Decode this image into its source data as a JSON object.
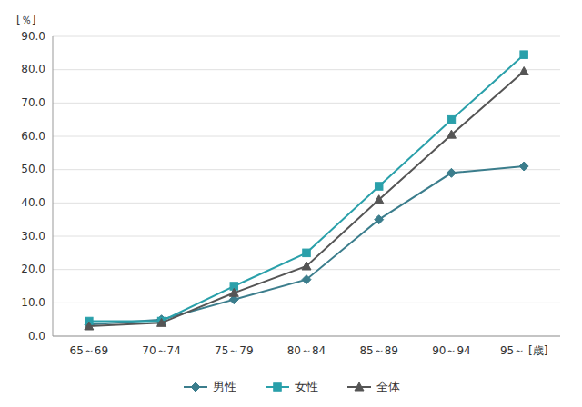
{
  "chart_data": {
    "type": "line",
    "categories": [
      "65～69",
      "70～74",
      "75～79",
      "80～84",
      "85～89",
      "90～94",
      "95～ [歳]"
    ],
    "y_label": "[％]",
    "series": [
      {
        "name": "男性",
        "values": [
          3.5,
          5.0,
          11.0,
          17.0,
          35.0,
          49.0,
          51.0
        ],
        "color": "#3b7d8c",
        "marker": "diamond",
        "line_style": "solid"
      },
      {
        "name": "女性",
        "values": [
          4.5,
          4.5,
          15.0,
          25.0,
          45.0,
          65.0,
          84.5
        ],
        "color": "#2aa0aa",
        "marker": "square",
        "line_style": "solid"
      },
      {
        "name": "全体",
        "values": [
          3.0,
          4.0,
          13.0,
          21.0,
          41.0,
          60.5,
          79.5
        ],
        "color": "#555555",
        "marker": "triangle",
        "line_style": "solid"
      }
    ],
    "ylim": [
      0,
      90
    ],
    "yticks": [
      {
        "value": 0,
        "label": "0.0"
      },
      {
        "value": 10,
        "label": "10.0"
      },
      {
        "value": 20,
        "label": "20.0"
      },
      {
        "value": 30,
        "label": "30.0"
      },
      {
        "value": 40,
        "label": "40.0"
      },
      {
        "value": 50,
        "label": "50.0"
      },
      {
        "value": 60,
        "label": "60.0"
      },
      {
        "value": 70,
        "label": "70.0"
      },
      {
        "value": 80,
        "label": "80.0"
      },
      {
        "value": 90,
        "label": "90.0"
      }
    ],
    "grid": true,
    "legend": "bottom"
  }
}
